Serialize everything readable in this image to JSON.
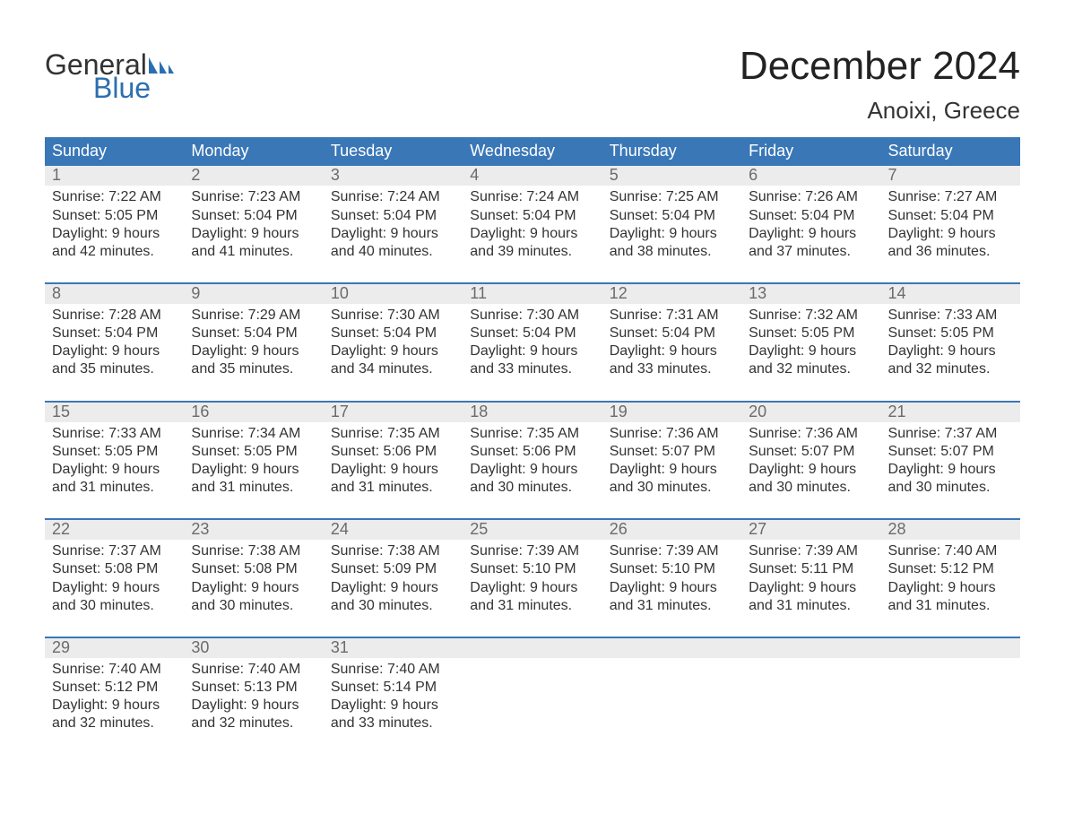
{
  "logo": {
    "text_general": "General",
    "text_blue": "Blue",
    "flag_color": "#2b6fb0",
    "general_color": "#333333",
    "blue_color": "#2b6fb0"
  },
  "title": "December 2024",
  "location": "Anoixi, Greece",
  "colors": {
    "header_bg": "#3a77b7",
    "header_text": "#ffffff",
    "week_border": "#3a77b7",
    "daynum_bg": "#ececec",
    "daynum_text": "#6b6b6b",
    "body_text": "#333333",
    "page_bg": "#ffffff"
  },
  "fontsize": {
    "title_pt": 44,
    "location_pt": 26,
    "dow_pt": 18,
    "daynum_pt": 18,
    "body_pt": 16,
    "logo_pt": 32
  },
  "days_of_week": [
    "Sunday",
    "Monday",
    "Tuesday",
    "Wednesday",
    "Thursday",
    "Friday",
    "Saturday"
  ],
  "weeks": [
    [
      {
        "n": "1",
        "sunrise": "Sunrise: 7:22 AM",
        "sunset": "Sunset: 5:05 PM",
        "d1": "Daylight: 9 hours",
        "d2": "and 42 minutes."
      },
      {
        "n": "2",
        "sunrise": "Sunrise: 7:23 AM",
        "sunset": "Sunset: 5:04 PM",
        "d1": "Daylight: 9 hours",
        "d2": "and 41 minutes."
      },
      {
        "n": "3",
        "sunrise": "Sunrise: 7:24 AM",
        "sunset": "Sunset: 5:04 PM",
        "d1": "Daylight: 9 hours",
        "d2": "and 40 minutes."
      },
      {
        "n": "4",
        "sunrise": "Sunrise: 7:24 AM",
        "sunset": "Sunset: 5:04 PM",
        "d1": "Daylight: 9 hours",
        "d2": "and 39 minutes."
      },
      {
        "n": "5",
        "sunrise": "Sunrise: 7:25 AM",
        "sunset": "Sunset: 5:04 PM",
        "d1": "Daylight: 9 hours",
        "d2": "and 38 minutes."
      },
      {
        "n": "6",
        "sunrise": "Sunrise: 7:26 AM",
        "sunset": "Sunset: 5:04 PM",
        "d1": "Daylight: 9 hours",
        "d2": "and 37 minutes."
      },
      {
        "n": "7",
        "sunrise": "Sunrise: 7:27 AM",
        "sunset": "Sunset: 5:04 PM",
        "d1": "Daylight: 9 hours",
        "d2": "and 36 minutes."
      }
    ],
    [
      {
        "n": "8",
        "sunrise": "Sunrise: 7:28 AM",
        "sunset": "Sunset: 5:04 PM",
        "d1": "Daylight: 9 hours",
        "d2": "and 35 minutes."
      },
      {
        "n": "9",
        "sunrise": "Sunrise: 7:29 AM",
        "sunset": "Sunset: 5:04 PM",
        "d1": "Daylight: 9 hours",
        "d2": "and 35 minutes."
      },
      {
        "n": "10",
        "sunrise": "Sunrise: 7:30 AM",
        "sunset": "Sunset: 5:04 PM",
        "d1": "Daylight: 9 hours",
        "d2": "and 34 minutes."
      },
      {
        "n": "11",
        "sunrise": "Sunrise: 7:30 AM",
        "sunset": "Sunset: 5:04 PM",
        "d1": "Daylight: 9 hours",
        "d2": "and 33 minutes."
      },
      {
        "n": "12",
        "sunrise": "Sunrise: 7:31 AM",
        "sunset": "Sunset: 5:04 PM",
        "d1": "Daylight: 9 hours",
        "d2": "and 33 minutes."
      },
      {
        "n": "13",
        "sunrise": "Sunrise: 7:32 AM",
        "sunset": "Sunset: 5:05 PM",
        "d1": "Daylight: 9 hours",
        "d2": "and 32 minutes."
      },
      {
        "n": "14",
        "sunrise": "Sunrise: 7:33 AM",
        "sunset": "Sunset: 5:05 PM",
        "d1": "Daylight: 9 hours",
        "d2": "and 32 minutes."
      }
    ],
    [
      {
        "n": "15",
        "sunrise": "Sunrise: 7:33 AM",
        "sunset": "Sunset: 5:05 PM",
        "d1": "Daylight: 9 hours",
        "d2": "and 31 minutes."
      },
      {
        "n": "16",
        "sunrise": "Sunrise: 7:34 AM",
        "sunset": "Sunset: 5:05 PM",
        "d1": "Daylight: 9 hours",
        "d2": "and 31 minutes."
      },
      {
        "n": "17",
        "sunrise": "Sunrise: 7:35 AM",
        "sunset": "Sunset: 5:06 PM",
        "d1": "Daylight: 9 hours",
        "d2": "and 31 minutes."
      },
      {
        "n": "18",
        "sunrise": "Sunrise: 7:35 AM",
        "sunset": "Sunset: 5:06 PM",
        "d1": "Daylight: 9 hours",
        "d2": "and 30 minutes."
      },
      {
        "n": "19",
        "sunrise": "Sunrise: 7:36 AM",
        "sunset": "Sunset: 5:07 PM",
        "d1": "Daylight: 9 hours",
        "d2": "and 30 minutes."
      },
      {
        "n": "20",
        "sunrise": "Sunrise: 7:36 AM",
        "sunset": "Sunset: 5:07 PM",
        "d1": "Daylight: 9 hours",
        "d2": "and 30 minutes."
      },
      {
        "n": "21",
        "sunrise": "Sunrise: 7:37 AM",
        "sunset": "Sunset: 5:07 PM",
        "d1": "Daylight: 9 hours",
        "d2": "and 30 minutes."
      }
    ],
    [
      {
        "n": "22",
        "sunrise": "Sunrise: 7:37 AM",
        "sunset": "Sunset: 5:08 PM",
        "d1": "Daylight: 9 hours",
        "d2": "and 30 minutes."
      },
      {
        "n": "23",
        "sunrise": "Sunrise: 7:38 AM",
        "sunset": "Sunset: 5:08 PM",
        "d1": "Daylight: 9 hours",
        "d2": "and 30 minutes."
      },
      {
        "n": "24",
        "sunrise": "Sunrise: 7:38 AM",
        "sunset": "Sunset: 5:09 PM",
        "d1": "Daylight: 9 hours",
        "d2": "and 30 minutes."
      },
      {
        "n": "25",
        "sunrise": "Sunrise: 7:39 AM",
        "sunset": "Sunset: 5:10 PM",
        "d1": "Daylight: 9 hours",
        "d2": "and 31 minutes."
      },
      {
        "n": "26",
        "sunrise": "Sunrise: 7:39 AM",
        "sunset": "Sunset: 5:10 PM",
        "d1": "Daylight: 9 hours",
        "d2": "and 31 minutes."
      },
      {
        "n": "27",
        "sunrise": "Sunrise: 7:39 AM",
        "sunset": "Sunset: 5:11 PM",
        "d1": "Daylight: 9 hours",
        "d2": "and 31 minutes."
      },
      {
        "n": "28",
        "sunrise": "Sunrise: 7:40 AM",
        "sunset": "Sunset: 5:12 PM",
        "d1": "Daylight: 9 hours",
        "d2": "and 31 minutes."
      }
    ],
    [
      {
        "n": "29",
        "sunrise": "Sunrise: 7:40 AM",
        "sunset": "Sunset: 5:12 PM",
        "d1": "Daylight: 9 hours",
        "d2": "and 32 minutes."
      },
      {
        "n": "30",
        "sunrise": "Sunrise: 7:40 AM",
        "sunset": "Sunset: 5:13 PM",
        "d1": "Daylight: 9 hours",
        "d2": "and 32 minutes."
      },
      {
        "n": "31",
        "sunrise": "Sunrise: 7:40 AM",
        "sunset": "Sunset: 5:14 PM",
        "d1": "Daylight: 9 hours",
        "d2": "and 33 minutes."
      },
      {
        "n": "",
        "sunrise": "",
        "sunset": "",
        "d1": "",
        "d2": ""
      },
      {
        "n": "",
        "sunrise": "",
        "sunset": "",
        "d1": "",
        "d2": ""
      },
      {
        "n": "",
        "sunrise": "",
        "sunset": "",
        "d1": "",
        "d2": ""
      },
      {
        "n": "",
        "sunrise": "",
        "sunset": "",
        "d1": "",
        "d2": ""
      }
    ]
  ]
}
